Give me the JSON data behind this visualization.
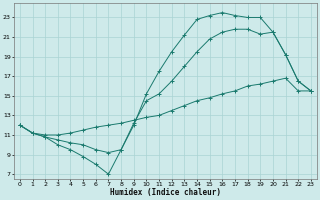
{
  "xlabel": "Humidex (Indice chaleur)",
  "bg_color": "#ceeaea",
  "grid_color": "#aad4d4",
  "line_color": "#1a7a6e",
  "xlim": [
    -0.5,
    23.5
  ],
  "ylim": [
    6.5,
    24.5
  ],
  "xticks": [
    0,
    1,
    2,
    3,
    4,
    5,
    6,
    7,
    8,
    9,
    10,
    11,
    12,
    13,
    14,
    15,
    16,
    17,
    18,
    19,
    20,
    21,
    22,
    23
  ],
  "yticks": [
    7,
    9,
    11,
    13,
    15,
    17,
    19,
    21,
    23
  ],
  "line1_x": [
    0,
    1,
    2,
    3,
    4,
    5,
    6,
    7,
    8,
    9,
    10,
    11,
    12,
    13,
    14,
    15,
    16,
    17,
    18,
    19,
    20,
    21,
    22,
    23
  ],
  "line1_y": [
    12.0,
    11.2,
    10.8,
    10.0,
    9.5,
    8.8,
    8.0,
    7.0,
    9.5,
    12.0,
    15.2,
    17.5,
    19.5,
    21.2,
    22.8,
    23.2,
    23.5,
    23.2,
    23.0,
    23.0,
    21.5,
    19.2,
    16.5,
    15.5
  ],
  "line2_x": [
    0,
    1,
    2,
    3,
    4,
    5,
    6,
    7,
    8,
    9,
    10,
    11,
    12,
    13,
    14,
    15,
    16,
    17,
    18,
    19,
    20,
    21,
    22,
    23
  ],
  "line2_y": [
    12.0,
    11.2,
    10.8,
    10.5,
    10.2,
    10.0,
    9.5,
    9.2,
    9.5,
    12.2,
    14.5,
    15.2,
    16.5,
    18.0,
    19.5,
    20.8,
    21.5,
    21.8,
    21.8,
    21.3,
    21.5,
    19.2,
    16.5,
    15.5
  ],
  "line3_x": [
    0,
    1,
    2,
    3,
    4,
    5,
    6,
    7,
    8,
    9,
    10,
    11,
    12,
    13,
    14,
    15,
    16,
    17,
    18,
    19,
    20,
    21,
    22,
    23
  ],
  "line3_y": [
    12.0,
    11.2,
    11.0,
    11.0,
    11.2,
    11.5,
    11.8,
    12.0,
    12.2,
    12.5,
    12.8,
    13.0,
    13.5,
    14.0,
    14.5,
    14.8,
    15.2,
    15.5,
    16.0,
    16.2,
    16.5,
    16.8,
    15.5,
    15.5
  ]
}
